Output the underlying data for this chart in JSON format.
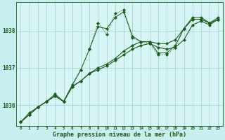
{
  "background_color": "#c8eef0",
  "plot_bg_color": "#d8f5f5",
  "line_color": "#1a5c1a",
  "grid_color": "#9ecece",
  "xlabel": "Graphe pression niveau de la mer (hPa)",
  "x_ticks": [
    0,
    1,
    2,
    3,
    4,
    5,
    6,
    7,
    8,
    9,
    10,
    11,
    12,
    13,
    14,
    15,
    16,
    17,
    18,
    19,
    20,
    21,
    22,
    23
  ],
  "ylim": [
    1035.45,
    1038.75
  ],
  "yticks": [
    1036,
    1037,
    1038
  ],
  "series": {
    "line1_dotted": [
      1035.55,
      1035.75,
      1035.95,
      1036.1,
      1036.25,
      1036.1,
      1036.5,
      1036.95,
      1037.5,
      1038.2,
      1037.9,
      1038.45,
      1038.55,
      1037.8,
      1037.7,
      1037.65,
      1037.35,
      1037.35,
      1037.55,
      1038.05,
      1038.3,
      1038.3,
      1038.2,
      1038.3
    ],
    "line2_solid": [
      1035.55,
      1035.75,
      1035.95,
      1036.1,
      1036.25,
      1036.1,
      1036.5,
      1036.65,
      1036.85,
      1036.95,
      1037.05,
      1037.2,
      1037.35,
      1037.5,
      1037.6,
      1037.65,
      1037.55,
      1037.5,
      1037.55,
      1037.75,
      1038.15,
      1038.25,
      1038.15,
      1038.3
    ],
    "line3_solid": [
      1035.55,
      1035.75,
      1035.95,
      1036.1,
      1036.25,
      1036.1,
      1036.5,
      1036.65,
      1036.85,
      1037.0,
      1037.1,
      1037.25,
      1037.45,
      1037.6,
      1037.7,
      1037.7,
      1037.65,
      1037.65,
      1037.75,
      1038.05,
      1038.3,
      1038.3,
      1038.2,
      1038.3
    ],
    "line4_spiky": [
      1035.55,
      1035.8,
      1035.95,
      1036.1,
      1036.3,
      1036.1,
      1036.55,
      1036.95,
      1037.5,
      1038.1,
      1038.05,
      1038.35,
      1038.5,
      1037.85,
      1037.7,
      1037.7,
      1037.4,
      1037.4,
      1037.6,
      1038.05,
      1038.35,
      1038.35,
      1038.2,
      1038.35
    ]
  }
}
